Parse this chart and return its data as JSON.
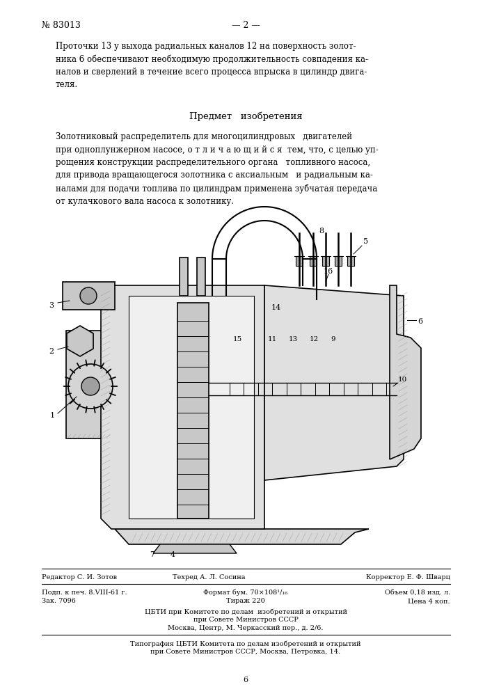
{
  "bg_color": "#ffffff",
  "page_width": 7.07,
  "page_height": 10.0,
  "patent_number": "№ 83013",
  "page_number": "— 2 —",
  "predmet_title": "Предмет   изобретения",
  "editor_line": "Редактор С. И. Зотов",
  "techred_line": "Техред А. Л. Сосина",
  "corrector_line": "Корректор Е. Ф. Шварц",
  "podp_line": "Подп. к печ. 8.VIII-61 г.",
  "format_line": "Формат бум. 70×108¹/₁₆",
  "objem_line": "Объем 0,18 изд. л.",
  "zak_line": "Зак. 7096",
  "tirazh_line": "Тираж 220",
  "cena_line": "Цена 4 коп.",
  "cbti_line1": "ЦБТИ при Комитете по делам  изобретений и открытий",
  "cbti_line2": "при Совете Министров СССР",
  "cbti_line3": "Москва, Центр, М. Черкасский пер., д. 2/6.",
  "tipogr_line1": "Типография ЦБТИ Комитета по делам изобретений и открытий",
  "tipogr_line2": "при Совете Министров СССР, Москва, Петровка, 14.",
  "bottom_char": "6"
}
